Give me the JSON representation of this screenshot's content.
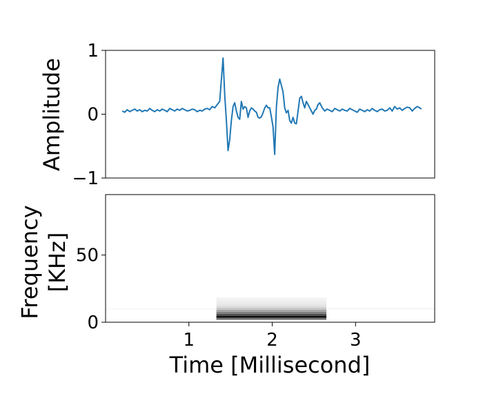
{
  "chart_data": [
    {
      "type": "line",
      "title": "",
      "xlabel": "",
      "ylabel": "Amplitude",
      "xlim": [
        0.0,
        3.95
      ],
      "ylim": [
        -1,
        1
      ],
      "yticks": [
        {
          "value": -1,
          "label": "−1"
        },
        {
          "value": 0,
          "label": "0"
        },
        {
          "value": 1,
          "label": "1"
        }
      ],
      "xticks_visible": false,
      "grid": false,
      "line_color": "#1f77b4",
      "series": [
        {
          "x": [
            0.2,
            0.23,
            0.26,
            0.29,
            0.32,
            0.35,
            0.38,
            0.41,
            0.44,
            0.47,
            0.5,
            0.53,
            0.56,
            0.59,
            0.62,
            0.65,
            0.68,
            0.71,
            0.74,
            0.77,
            0.8,
            0.83,
            0.86,
            0.89,
            0.92,
            0.95,
            0.98,
            1.01,
            1.04,
            1.07,
            1.1,
            1.13,
            1.16,
            1.19,
            1.22,
            1.25,
            1.28,
            1.31,
            1.34,
            1.37,
            1.39,
            1.41,
            1.43,
            1.45,
            1.47,
            1.49,
            1.51,
            1.53,
            1.55,
            1.57,
            1.59,
            1.61,
            1.63,
            1.65,
            1.67,
            1.69,
            1.71,
            1.73,
            1.75,
            1.77,
            1.79,
            1.81,
            1.83,
            1.85,
            1.87,
            1.89,
            1.91,
            1.93,
            1.95,
            1.97,
            1.99,
            2.01,
            2.03,
            2.05,
            2.07,
            2.09,
            2.11,
            2.13,
            2.15,
            2.17,
            2.19,
            2.21,
            2.23,
            2.25,
            2.27,
            2.29,
            2.31,
            2.33,
            2.35,
            2.37,
            2.39,
            2.41,
            2.43,
            2.45,
            2.47,
            2.49,
            2.51,
            2.53,
            2.55,
            2.57,
            2.6,
            2.63,
            2.66,
            2.69,
            2.72,
            2.75,
            2.78,
            2.81,
            2.84,
            2.87,
            2.9,
            2.93,
            2.96,
            2.99,
            3.02,
            3.05,
            3.08,
            3.11,
            3.14,
            3.17,
            3.2,
            3.23,
            3.26,
            3.29,
            3.32,
            3.35,
            3.38,
            3.41,
            3.44,
            3.47,
            3.5,
            3.53,
            3.56,
            3.59,
            3.62,
            3.65,
            3.68,
            3.71,
            3.74,
            3.77,
            3.79
          ],
          "y": [
            0.05,
            0.03,
            0.07,
            0.04,
            0.06,
            0.08,
            0.05,
            0.07,
            0.04,
            0.06,
            0.05,
            0.09,
            0.06,
            0.04,
            0.07,
            0.05,
            0.08,
            0.06,
            0.04,
            0.09,
            0.07,
            0.05,
            0.08,
            0.06,
            0.09,
            0.07,
            0.05,
            0.06,
            0.08,
            0.07,
            0.04,
            0.06,
            0.05,
            0.08,
            0.09,
            0.07,
            0.12,
            0.1,
            0.15,
            0.2,
            0.55,
            0.88,
            0.3,
            -0.1,
            -0.57,
            -0.4,
            -0.1,
            0.12,
            0.18,
            0.05,
            -0.05,
            -0.08,
            0.2,
            0.08,
            0.12,
            0.1,
            -0.05,
            0.05,
            0.1,
            0.08,
            0.05,
            0.03,
            -0.05,
            -0.06,
            -0.04,
            0.02,
            0.1,
            0.14,
            0.1,
            0.1,
            -0.04,
            -0.2,
            -0.63,
            0.12,
            0.42,
            0.55,
            0.45,
            0.35,
            0.1,
            0.02,
            0.06,
            -0.1,
            -0.14,
            -0.05,
            -0.14,
            -0.15,
            0.05,
            0.25,
            0.28,
            0.18,
            0.1,
            0.2,
            0.15,
            0.1,
            0.05,
            0.0,
            0.06,
            0.08,
            0.15,
            0.18,
            0.1,
            0.05,
            0.08,
            0.06,
            0.04,
            0.09,
            0.07,
            0.05,
            0.08,
            0.06,
            0.05,
            0.09,
            0.07,
            0.05,
            0.03,
            0.08,
            0.06,
            0.04,
            0.07,
            0.05,
            0.09,
            0.06,
            0.04,
            0.07,
            0.08,
            0.05,
            0.06,
            0.1,
            0.05,
            0.12,
            0.08,
            0.1,
            0.06,
            0.09,
            0.11,
            0.1,
            0.05,
            0.09,
            0.12,
            0.1,
            0.08
          ]
        }
      ]
    },
    {
      "type": "heatmap",
      "title": "",
      "xlabel": "Time [Millisecond]",
      "ylabel_lines": [
        "Frequency",
        "[KHz]"
      ],
      "xlim": [
        0.0,
        3.95
      ],
      "ylim": [
        0,
        95
      ],
      "xticks": [
        {
          "value": 1,
          "label": "1"
        },
        {
          "value": 2,
          "label": "2"
        },
        {
          "value": 3,
          "label": "3"
        }
      ],
      "yticks": [
        {
          "value": 0,
          "label": "0"
        },
        {
          "value": 50,
          "label": "50"
        }
      ],
      "grid": false,
      "colormap": "greys",
      "cells": [
        {
          "x0": 1.33,
          "x1": 2.65,
          "freq": 17.5,
          "intensity": 0.05
        },
        {
          "x0": 1.33,
          "x1": 2.65,
          "freq": 16.0,
          "intensity": 0.06
        },
        {
          "x0": 1.33,
          "x1": 2.65,
          "freq": 14.5,
          "intensity": 0.08
        },
        {
          "x0": 1.33,
          "x1": 2.65,
          "freq": 13.0,
          "intensity": 0.1
        },
        {
          "x0": 1.33,
          "x1": 2.65,
          "freq": 11.5,
          "intensity": 0.14
        },
        {
          "x0": 1.33,
          "x1": 2.65,
          "freq": 10.0,
          "intensity": 0.22
        },
        {
          "x0": 1.33,
          "x1": 2.65,
          "freq": 8.5,
          "intensity": 0.35
        },
        {
          "x0": 1.33,
          "x1": 2.65,
          "freq": 7.0,
          "intensity": 0.5
        },
        {
          "x0": 1.33,
          "x1": 2.65,
          "freq": 5.5,
          "intensity": 0.7
        },
        {
          "x0": 1.33,
          "x1": 2.65,
          "freq": 4.0,
          "intensity": 0.95
        },
        {
          "x0": 1.33,
          "x1": 2.65,
          "freq": 2.5,
          "intensity": 0.55
        },
        {
          "x0": 2.65,
          "x1": 3.95,
          "freq": 10.0,
          "intensity": 0.03
        },
        {
          "x0": 0.0,
          "x1": 1.33,
          "freq": 10.0,
          "intensity": 0.02
        }
      ]
    }
  ]
}
